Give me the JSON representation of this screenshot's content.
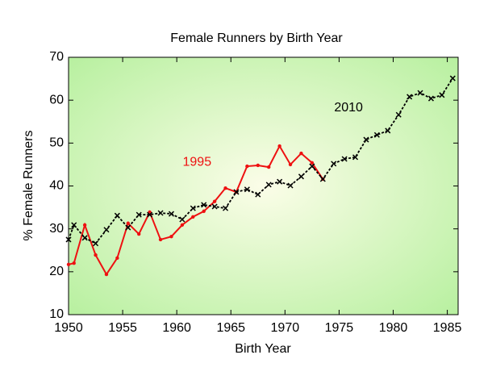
{
  "chart_data": {
    "type": "line",
    "title": "Female Runners by Birth Year",
    "xlabel": "Birth Year",
    "ylabel": "% Female Runners",
    "xlim": [
      1950,
      1986
    ],
    "xticks": [
      1950,
      1955,
      1960,
      1965,
      1970,
      1975,
      1980,
      1985
    ],
    "ylim": [
      10,
      70
    ],
    "yticks": [
      10,
      20,
      30,
      40,
      50,
      60,
      70
    ],
    "series": [
      {
        "name": "1995",
        "color": "#ee1111",
        "marker": "dot",
        "x": [
          1950,
          1950.5,
          1951.5,
          1952.5,
          1953.5,
          1954.5,
          1955.5,
          1956.5,
          1957.5,
          1958.5,
          1959.5,
          1960.5,
          1961.5,
          1962.5,
          1963.5,
          1964.5,
          1965.5,
          1966.5,
          1967.5,
          1968.5,
          1969.5,
          1970.5,
          1971.5,
          1972.5,
          1973.5
        ],
        "values": [
          21.7,
          22.0,
          30.9,
          23.9,
          19.4,
          23.2,
          31.3,
          28.8,
          33.9,
          27.5,
          28.2,
          30.9,
          32.8,
          34.1,
          36.4,
          39.5,
          38.6,
          44.6,
          44.8,
          44.4,
          49.3,
          45.0,
          47.6,
          45.4,
          41.6
        ]
      },
      {
        "name": "2010",
        "color": "#000000",
        "marker": "x",
        "x": [
          1950,
          1950.5,
          1951.5,
          1952.5,
          1953.5,
          1954.5,
          1955.5,
          1956.5,
          1957.5,
          1958.5,
          1959.5,
          1960.5,
          1961.5,
          1962.5,
          1963.5,
          1964.5,
          1965.5,
          1966.5,
          1967.5,
          1968.5,
          1969.5,
          1970.5,
          1971.5,
          1972.5,
          1973.5,
          1974.5,
          1975.5,
          1976.5,
          1977.5,
          1978.5,
          1979.5,
          1980.5,
          1981.5,
          1982.5,
          1983.5,
          1984.5,
          1985.5
        ],
        "values": [
          27.5,
          30.9,
          27.9,
          26.6,
          29.8,
          33.1,
          30.3,
          33.3,
          33.3,
          33.7,
          33.5,
          32.2,
          34.8,
          35.6,
          35.2,
          34.8,
          38.6,
          39.2,
          38.0,
          40.3,
          41.0,
          40.1,
          42.2,
          44.6,
          41.6,
          45.2,
          46.3,
          46.7,
          50.8,
          51.9,
          52.9,
          56.6,
          60.8,
          61.7,
          60.4,
          61.2,
          65.1
        ]
      }
    ]
  }
}
